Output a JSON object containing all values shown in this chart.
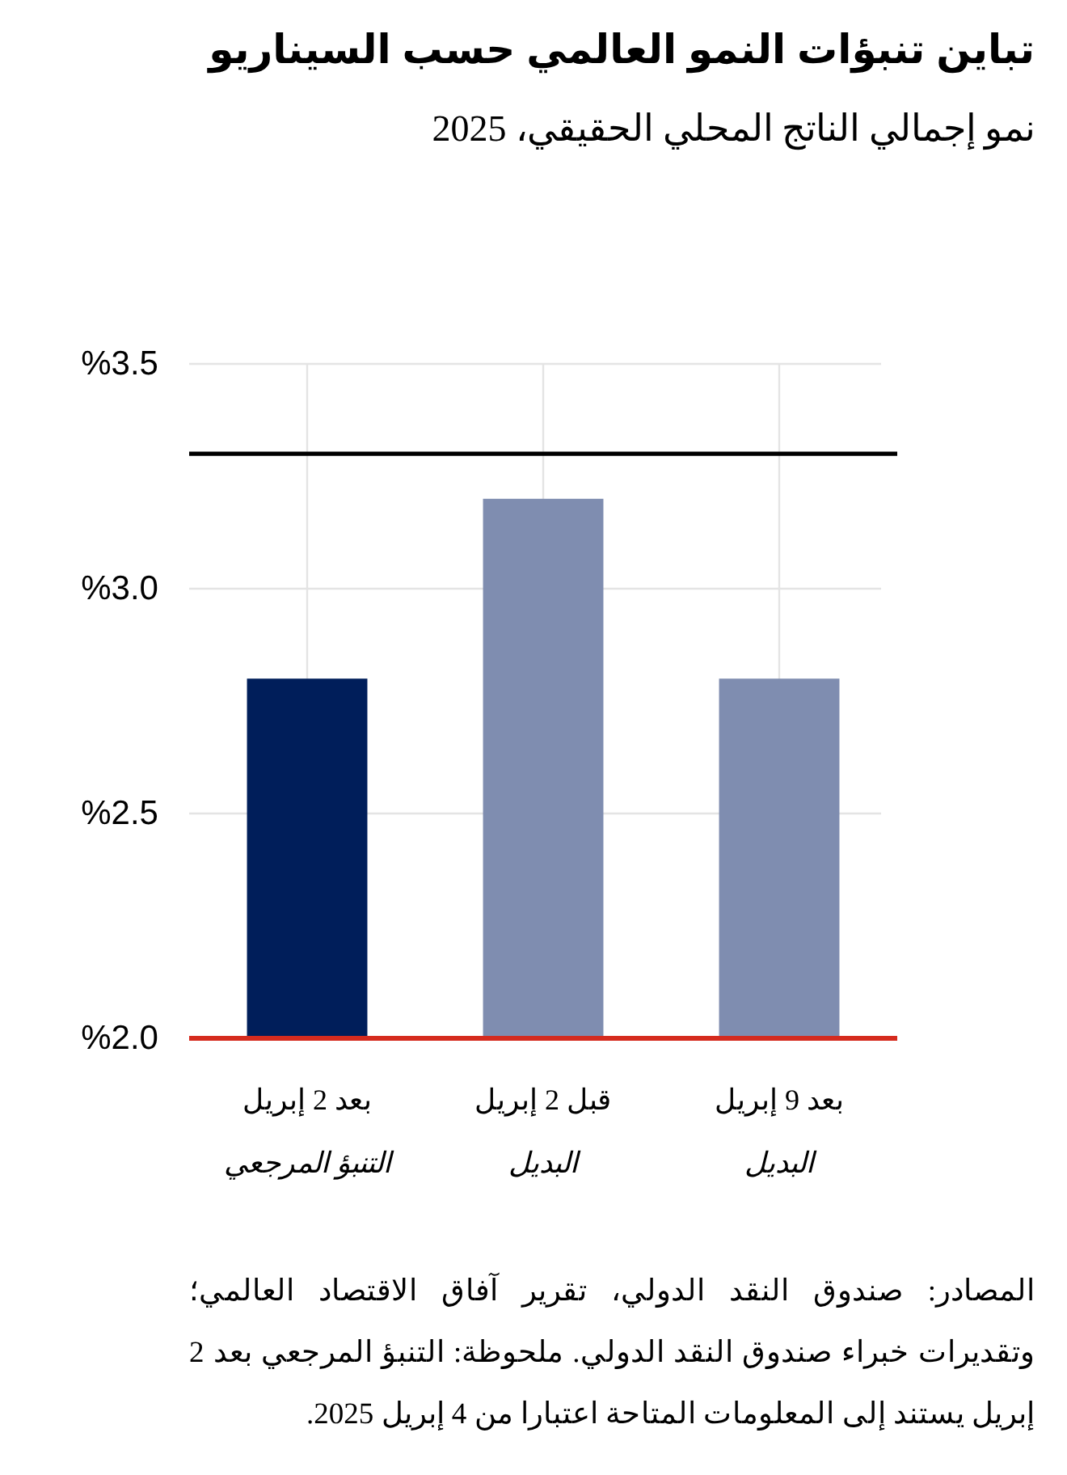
{
  "chart_data": {
    "type": "bar",
    "title": "تباين تنبؤات النمو العالمي حسب السيناريو",
    "subtitle": "نمو إجمالي الناتج المحلي الحقيقي، 2025",
    "categories": [
      "بعد 2 إبريل\nالتنبؤ المرجعي",
      "قبل 2 إبريل\nالبديل",
      "بعد 9 إبريل\nالبديل"
    ],
    "values": [
      2.8,
      3.2,
      2.8
    ],
    "colors": [
      "#001e5a",
      "#7f8db0",
      "#7f8db0"
    ],
    "ylim": [
      2.0,
      3.5
    ],
    "yticks": [
      {
        "value": 2.0,
        "label": "%2.0"
      },
      {
        "value": 2.5,
        "label": "%2.5"
      },
      {
        "value": 3.0,
        "label": "%3.0"
      },
      {
        "value": 3.5,
        "label": "%3.5"
      }
    ],
    "grid": true,
    "ref_lines": [
      {
        "axis": "y",
        "value": 3.3,
        "color": "#000000"
      }
    ],
    "annotations": [
      "المصادر: صندوق النقد الدولي، تقرير آفاق الاقتصاد العالمي؛ وتقديرات خبراء صندوق النقد الدولي. ملحوظة: التنبؤ المرجعي بعد 2 إبريل يستند إلى المعلومات المتاحة اعتبارا من 4 إبريل 2025."
    ]
  }
}
